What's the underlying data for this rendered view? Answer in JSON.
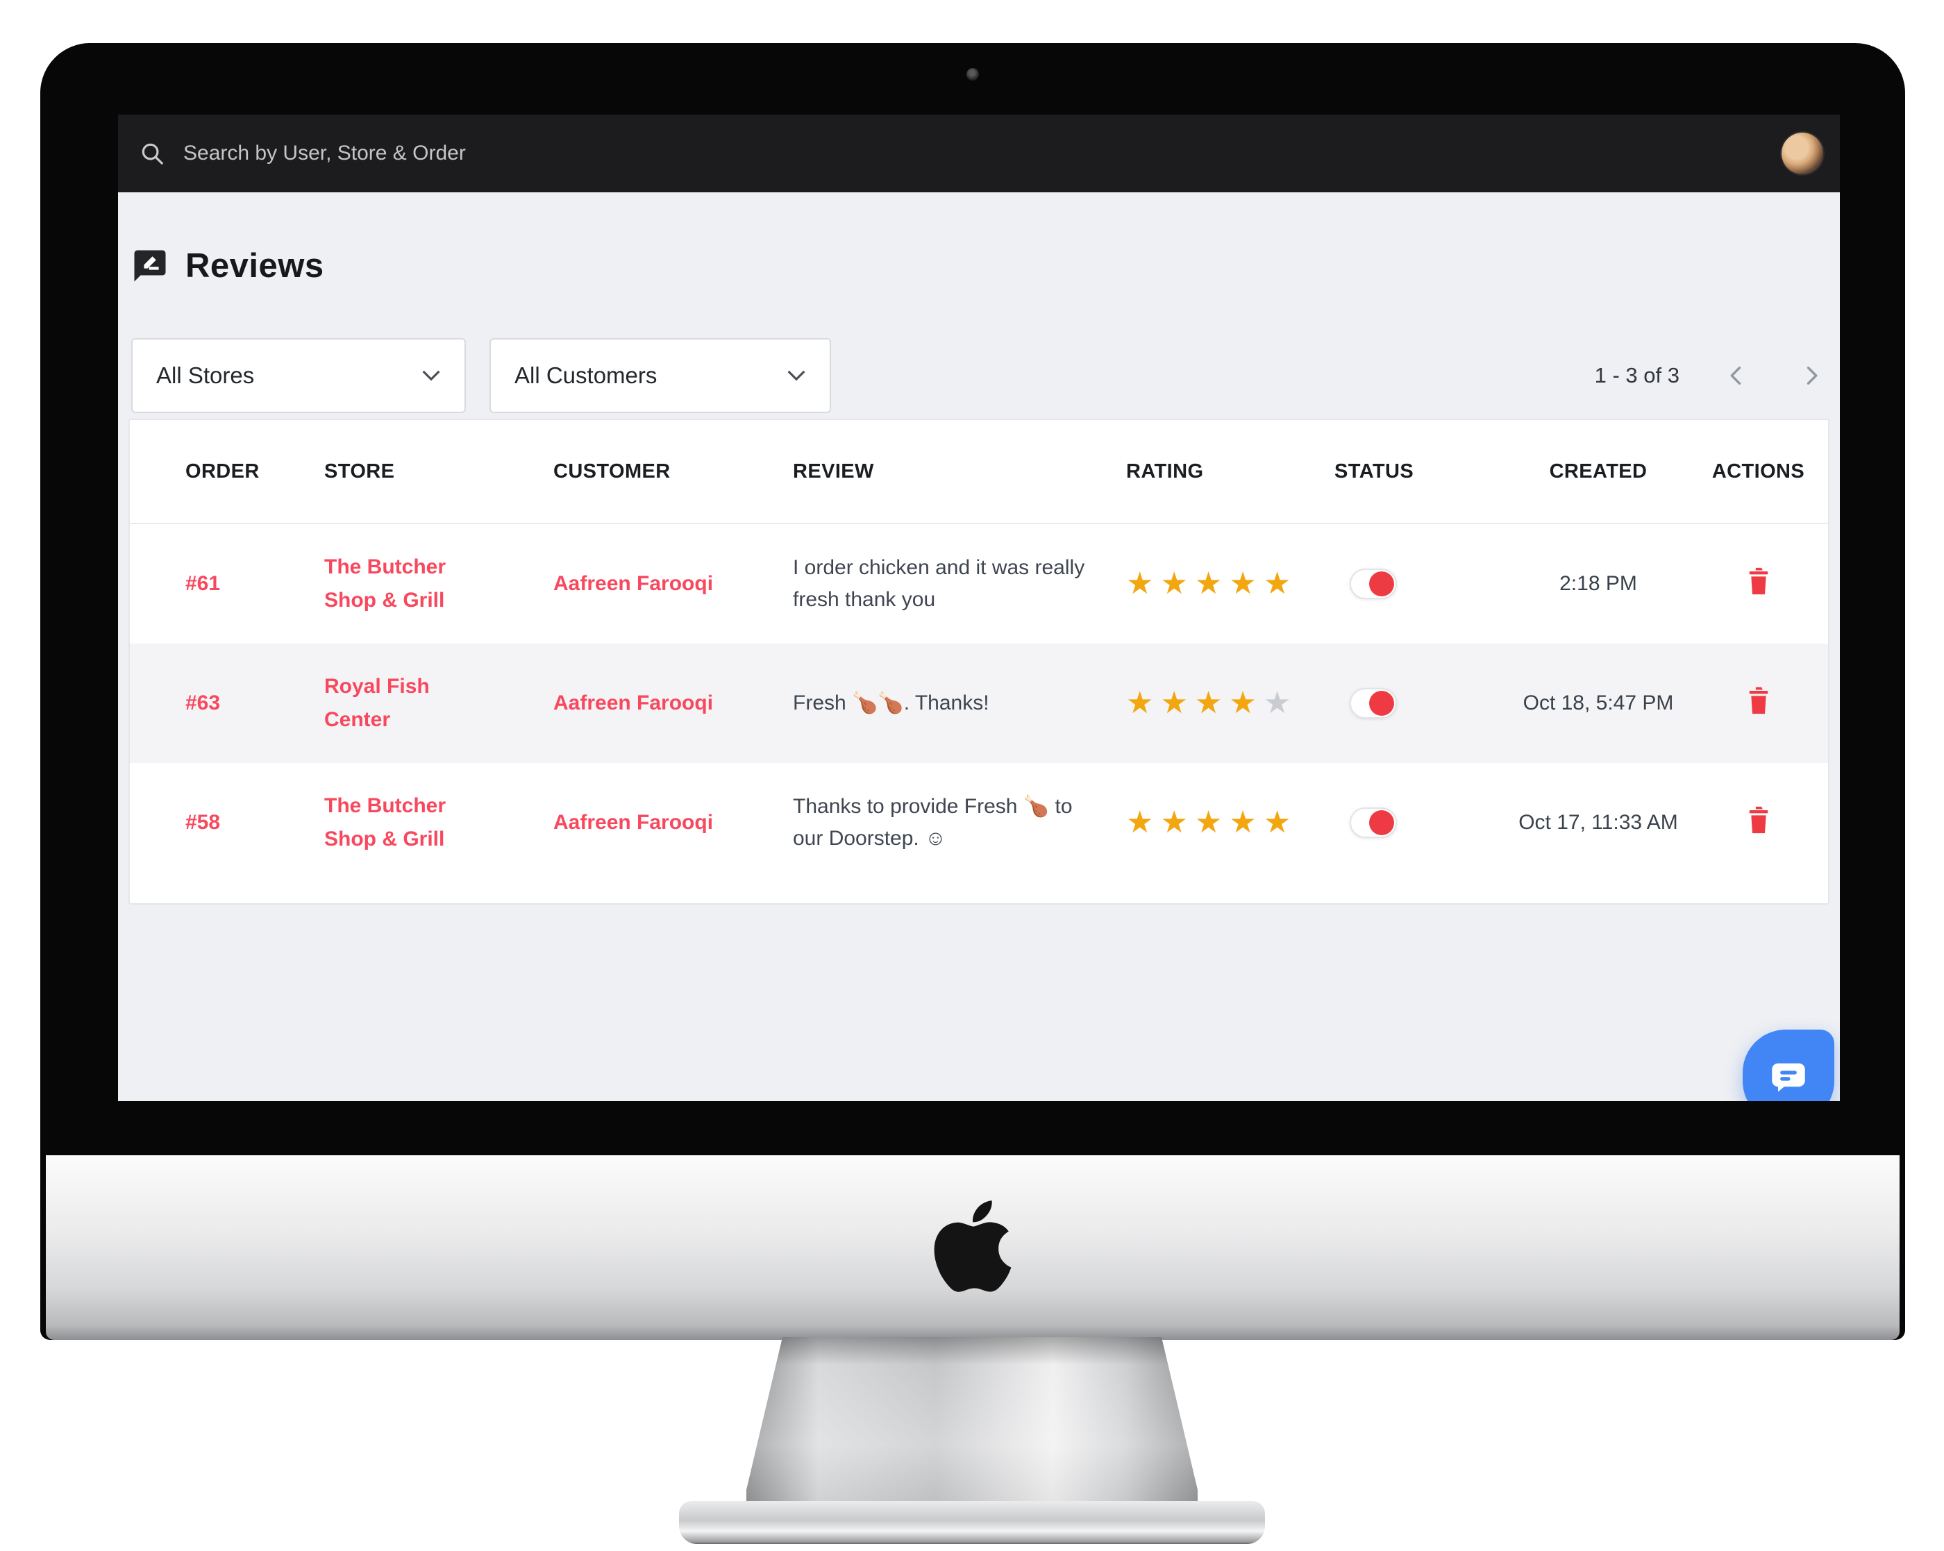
{
  "topbar": {
    "search_placeholder": "Search by User, Store & Order"
  },
  "page": {
    "title": "Reviews"
  },
  "filters": {
    "stores_selected": "All Stores",
    "customers_selected": "All Customers"
  },
  "pagination": {
    "range": "1 - 3 of 3"
  },
  "table": {
    "columns": [
      "ORDER",
      "STORE",
      "CUSTOMER",
      "REVIEW",
      "RATING",
      "STATUS",
      "CREATED",
      "ACTIONS"
    ],
    "rows": [
      {
        "order": "#61",
        "store": "The Butcher Shop & Grill",
        "customer": "Aafreen Farooqi",
        "review": "I order chicken and it was really fresh thank you",
        "rating": 5,
        "status_on": true,
        "created": "2:18 PM"
      },
      {
        "order": "#63",
        "store": "Royal Fish Center",
        "customer": "Aafreen Farooqi",
        "review": "Fresh 🍗🍗. Thanks!",
        "rating": 4,
        "status_on": true,
        "created": "Oct 18, 5:47 PM"
      },
      {
        "order": "#58",
        "store": "The Butcher Shop & Grill",
        "customer": "Aafreen Farooqi",
        "review": "Thanks to provide Fresh 🍗 to our Doorstep. ☺",
        "rating": 5,
        "status_on": true,
        "created": "Oct 17, 11:33 AM"
      }
    ]
  },
  "icons": {
    "search": "magnifier",
    "reviews": "speech-bubble-pencil",
    "delete": "trash-can",
    "chat": "chat-bubble",
    "star_filled": "★",
    "star_empty": "★"
  },
  "colors": {
    "accent_red": "#f8485e",
    "control_red": "#ee3b43",
    "star_gold": "#f2a60f",
    "star_empty": "#c9cdd2",
    "chat_blue": "#4286f5"
  }
}
